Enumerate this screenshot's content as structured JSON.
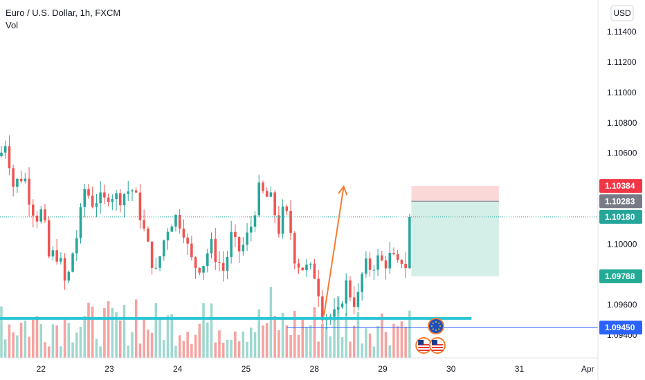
{
  "header": {
    "title": "Euro / U.S. Dollar, 1h, FXCM",
    "volume_label": "Vol"
  },
  "currency_button": "USD",
  "colors": {
    "up": "#26a69a",
    "down": "#ef5350",
    "vol_up": "#9fd8cf",
    "vol_down": "#f5a3a1",
    "support": "#29c5d6",
    "hline": "#2962ff",
    "arrow": "#f57c30",
    "target_zone": "#d4efe8",
    "stop_zone": "#fbd8d8",
    "price_line": "#26a69a"
  },
  "chart_data": {
    "type": "candlestick",
    "symbol": "EURUSD",
    "interval": "1h",
    "y_axis": {
      "range": [
        1.0925,
        1.1161
      ],
      "ticks": [
        "1.11400",
        "1.11200",
        "1.11000",
        "1.10800",
        "1.10600",
        "1.10000",
        "1.09600",
        "1.09400"
      ]
    },
    "x_axis": {
      "range": [
        0,
        8.75
      ],
      "labels": [
        {
          "t": 0.6,
          "label": "22"
        },
        {
          "t": 1.6,
          "label": "23"
        },
        {
          "t": 2.6,
          "label": "24"
        },
        {
          "t": 3.6,
          "label": "25"
        },
        {
          "t": 4.6,
          "label": "28"
        },
        {
          "t": 5.6,
          "label": "29"
        },
        {
          "t": 6.6,
          "label": "30"
        },
        {
          "t": 7.6,
          "label": "31"
        },
        {
          "t": 8.6,
          "label": "Apr"
        }
      ]
    },
    "price_badges": [
      {
        "value": 1.10384,
        "label": "1.10384",
        "color": "#f23645"
      },
      {
        "value": 1.10283,
        "label": "1.10283",
        "color": "#787b86"
      },
      {
        "value": 1.1018,
        "label": "1.10180",
        "color": "#26a69a"
      },
      {
        "value": 1.09788,
        "label": "1.09788",
        "color": "#22ab94"
      },
      {
        "value": 1.0945,
        "label": "1.09450",
        "color": "#2962ff"
      }
    ],
    "last_price": 1.1018,
    "support_level": 1.0951,
    "horizontal_line": {
      "value": 1.0945,
      "t_start": 4.2
    },
    "position": {
      "t_start": 6.02,
      "t_end": 7.3,
      "stop": 1.10384,
      "entry": 1.10283,
      "target": 1.09788
    },
    "arrow": {
      "t1": 4.74,
      "p1": 1.0953,
      "t2": 5.03,
      "p2": 1.1038
    },
    "event_icons": [
      {
        "t": 6.38,
        "kind": "eu-flag"
      },
      {
        "t": 6.2,
        "kind": "us-flag"
      },
      {
        "t": 6.4,
        "kind": "us-flag"
      }
    ],
    "anchors": [
      [
        0.0,
        1.1058
      ],
      [
        0.08,
        1.1068
      ],
      [
        0.15,
        1.1052
      ],
      [
        0.2,
        1.1037
      ],
      [
        0.3,
        1.1045
      ],
      [
        0.38,
        1.1042
      ],
      [
        0.45,
        1.1026
      ],
      [
        0.55,
        1.1018
      ],
      [
        0.62,
        1.1022
      ],
      [
        0.72,
        1.099
      ],
      [
        0.82,
        1.0995
      ],
      [
        0.9,
        1.0985
      ],
      [
        0.97,
        1.097
      ],
      [
        1.05,
        1.0992
      ],
      [
        1.15,
        1.101
      ],
      [
        1.25,
        1.104
      ],
      [
        1.33,
        1.1027
      ],
      [
        1.42,
        1.103
      ],
      [
        1.52,
        1.1027
      ],
      [
        1.6,
        1.1035
      ],
      [
        1.72,
        1.103
      ],
      [
        1.85,
        1.1035
      ],
      [
        1.95,
        1.1036
      ],
      [
        2.05,
        1.102
      ],
      [
        2.15,
        1.1
      ],
      [
        2.22,
        1.099
      ],
      [
        2.28,
        1.098
      ],
      [
        2.38,
        1.1
      ],
      [
        2.48,
        1.1015
      ],
      [
        2.58,
        1.1018
      ],
      [
        2.68,
        1.1012
      ],
      [
        2.78,
        1.099
      ],
      [
        2.88,
        1.0985
      ],
      [
        2.98,
        1.0988
      ],
      [
        3.08,
        1.1
      ],
      [
        3.18,
        1.099
      ],
      [
        3.28,
        1.0982
      ],
      [
        3.38,
        1.1005
      ],
      [
        3.48,
        1.0995
      ],
      [
        3.58,
        1.1
      ],
      [
        3.68,
        1.1013
      ],
      [
        3.78,
        1.1035
      ],
      [
        3.88,
        1.1032
      ],
      [
        3.98,
        1.1028
      ],
      [
        4.08,
        1.101
      ],
      [
        4.15,
        1.1022
      ],
      [
        4.23,
        1.1015
      ],
      [
        4.32,
        1.099
      ],
      [
        4.42,
        1.0985
      ],
      [
        4.52,
        1.0983
      ],
      [
        4.62,
        1.098
      ],
      [
        4.72,
        1.0955
      ],
      [
        4.85,
        1.0952
      ],
      [
        4.95,
        1.0953
      ],
      [
        5.05,
        1.0975
      ],
      [
        5.15,
        1.0965
      ],
      [
        5.22,
        1.096
      ],
      [
        5.32,
        1.0985
      ],
      [
        5.42,
        1.0985
      ],
      [
        5.52,
        1.099
      ],
      [
        5.62,
        1.0987
      ],
      [
        5.72,
        1.0992
      ],
      [
        5.82,
        1.0985
      ],
      [
        5.9,
        1.0992
      ],
      [
        5.96,
        1.0982
      ],
      [
        6.0,
        1.0993
      ],
      [
        6.02,
        1.1018
      ]
    ],
    "volume_range": [
      0,
      100
    ]
  }
}
